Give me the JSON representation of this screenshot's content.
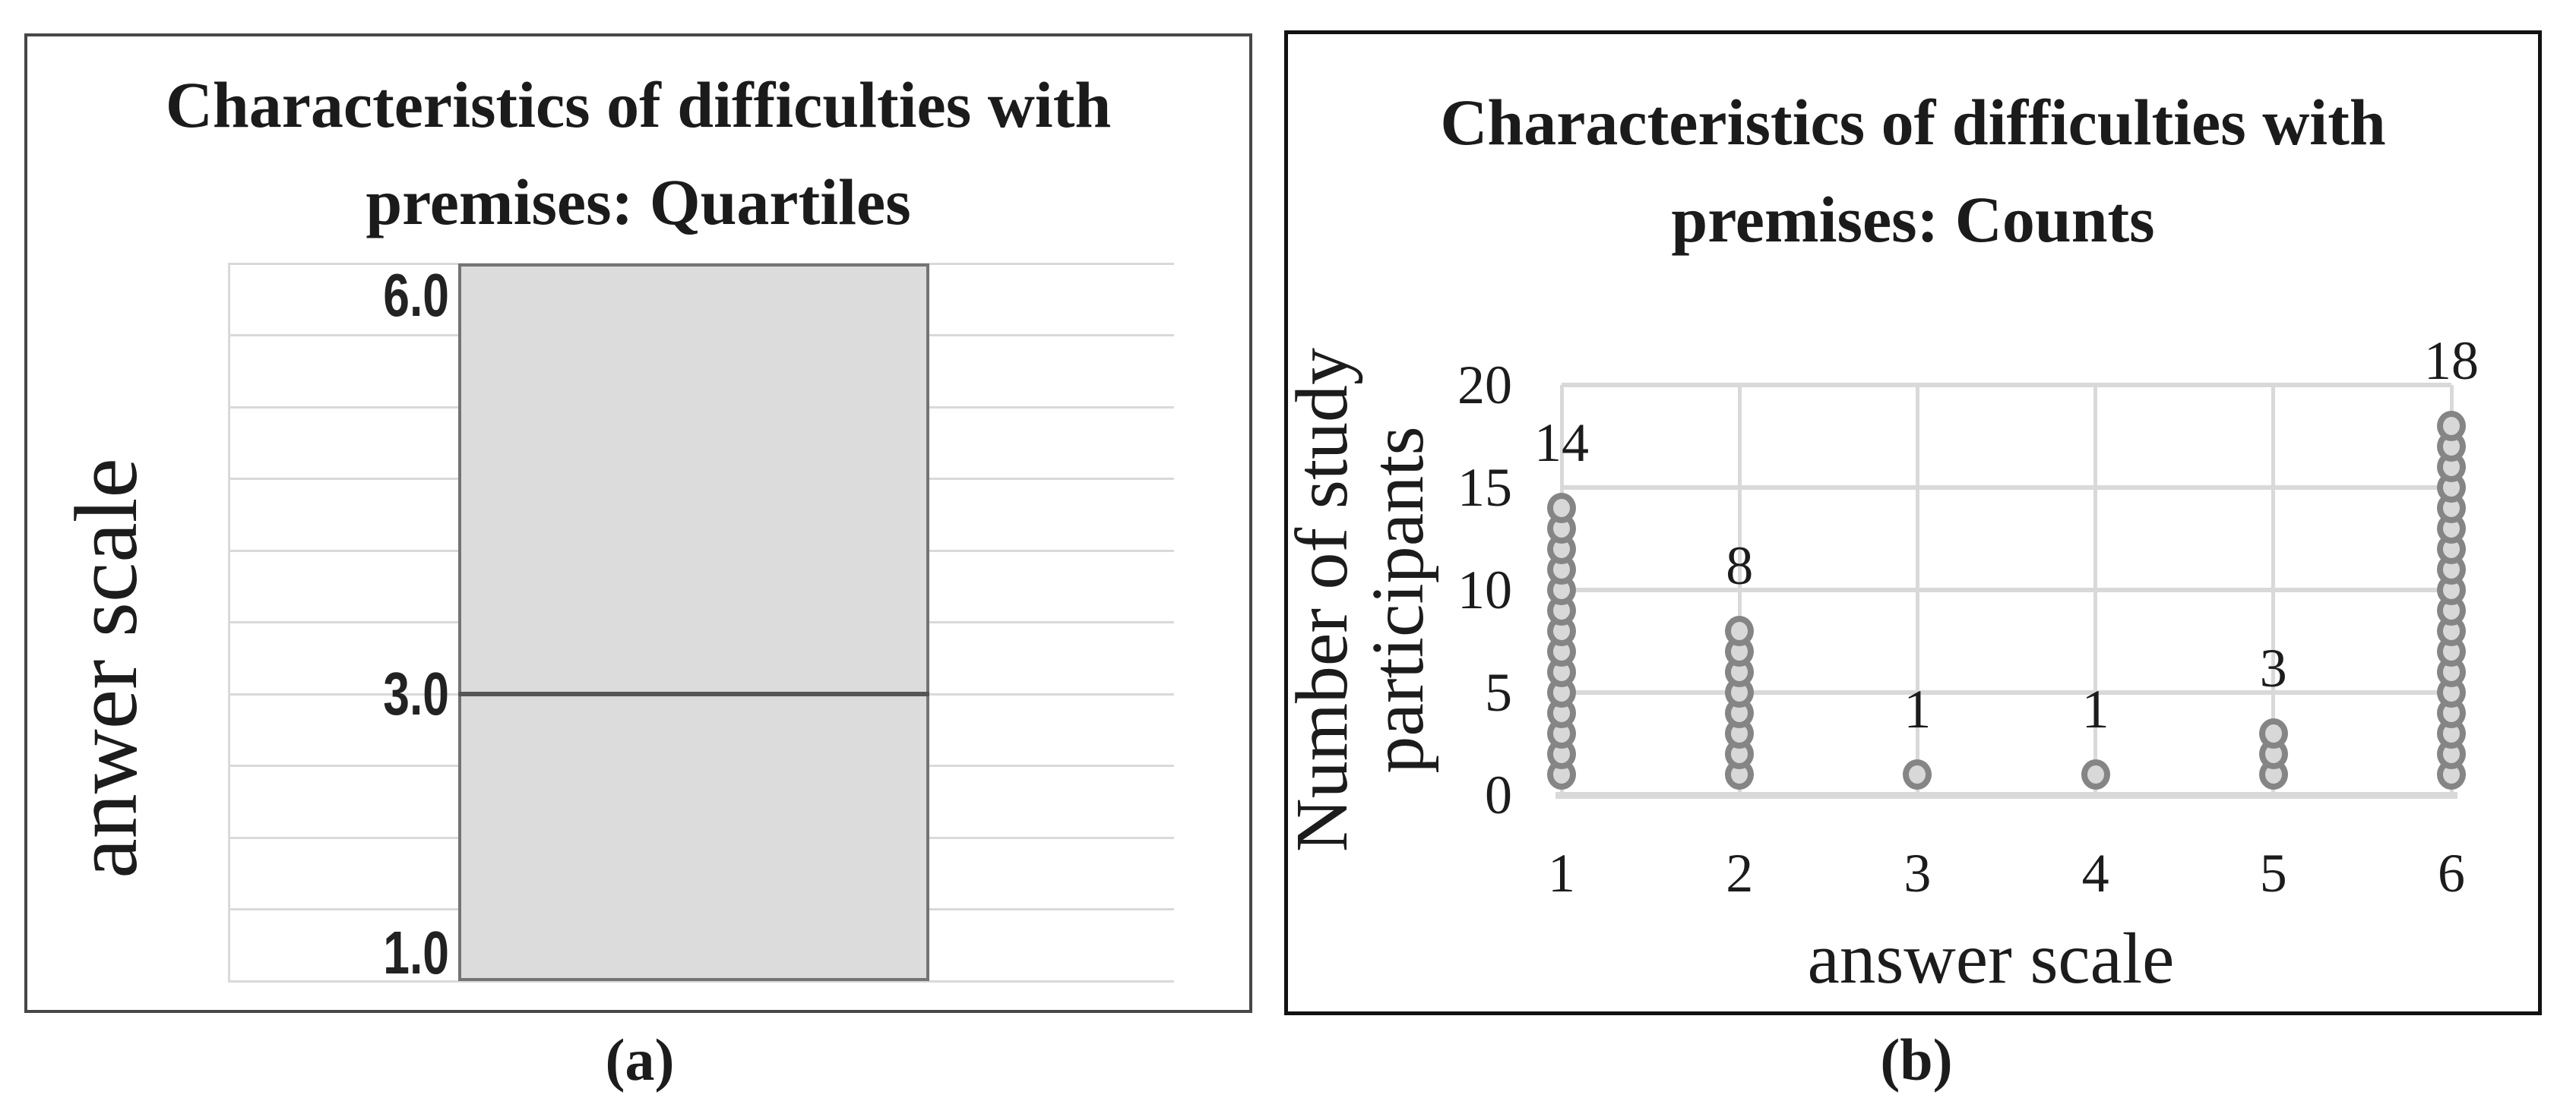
{
  "figure": {
    "panels": [
      {
        "caption": "(a)"
      },
      {
        "caption": "(b)"
      }
    ]
  },
  "chart_data": [
    {
      "type": "box",
      "title_lines": [
        "Characteristics of difficulties with",
        "premises: Quartiles"
      ],
      "ylabel": "anwer scale",
      "ylim": [
        1.0,
        6.0
      ],
      "gridline_step": 0.5,
      "grid": true,
      "box": {
        "lower": 1.0,
        "median": 3.0,
        "upper": 6.0
      },
      "data_labels": [
        {
          "text": "6.0",
          "value": 6.0,
          "placement": "below-line"
        },
        {
          "text": "3.0",
          "value": 3.0,
          "placement": "on-line"
        },
        {
          "text": "1.0",
          "value": 1.0,
          "placement": "above-line"
        }
      ]
    },
    {
      "type": "scatter",
      "subtype": "dot-stack",
      "title_lines": [
        "Characteristics of difficulties with",
        "premises: Counts"
      ],
      "xlabel": "answer scale",
      "ylabel_lines": [
        "Number of study",
        "participants"
      ],
      "categories": [
        "1",
        "2",
        "3",
        "4",
        "5",
        "6"
      ],
      "values": [
        14,
        8,
        1,
        1,
        3,
        18
      ],
      "value_labels": [
        "14",
        "8",
        "1",
        "1",
        "3",
        "18"
      ],
      "yticks": [
        "0",
        "5",
        "10",
        "15",
        "20"
      ],
      "ylim": [
        0,
        20
      ],
      "grid": true,
      "legend_position": "none"
    }
  ],
  "colors": {
    "gridline": "#d9d9d9",
    "box_fill": "#dcdcdc",
    "box_border": "#747474",
    "median_line": "#565656",
    "dot_fill": "#d8d8d8",
    "dot_border": "#858585",
    "text": "#1c1c1c"
  }
}
